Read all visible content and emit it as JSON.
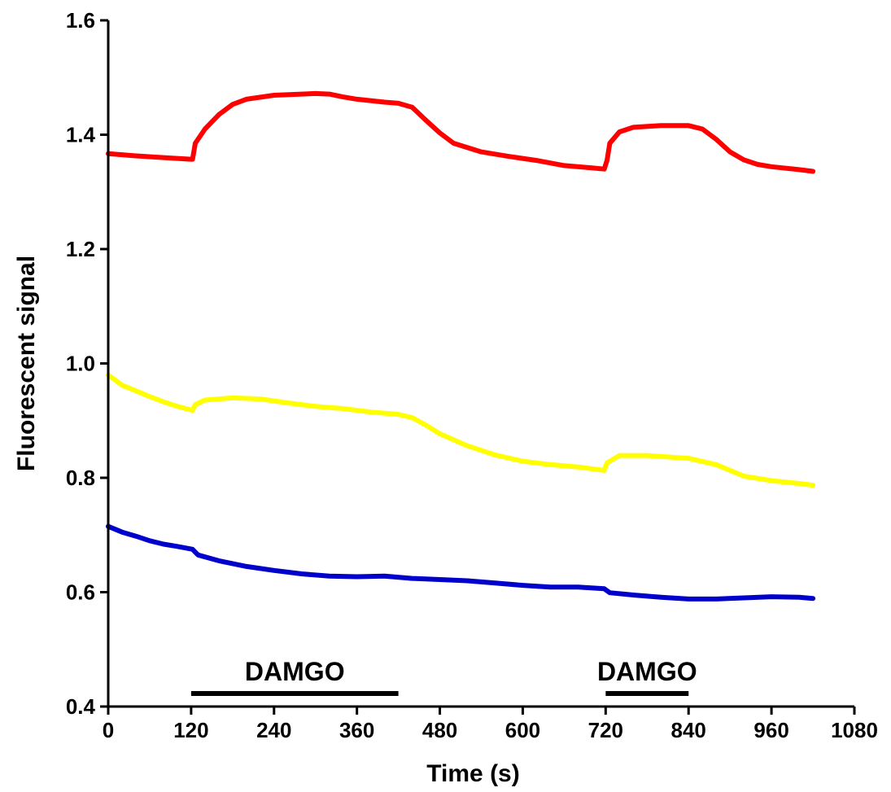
{
  "chart_data": {
    "type": "line",
    "xlabel": "Time (s)",
    "ylabel": "Fluorescent signal",
    "xlim": [
      0,
      1080
    ],
    "ylim": [
      0.4,
      1.6
    ],
    "xticks": [
      0,
      120,
      240,
      360,
      480,
      600,
      720,
      840,
      960,
      1080
    ],
    "xtick_labels": [
      "0",
      "120",
      "240",
      "360",
      "480",
      "600",
      "720",
      "840",
      "960",
      "1080"
    ],
    "yticks": [
      0.4,
      0.6,
      0.8,
      1.0,
      1.2,
      1.4,
      1.6
    ],
    "ytick_labels": [
      "0.4",
      "0.6",
      "0.8",
      "1.0",
      "1.2",
      "1.4",
      "1.6"
    ],
    "grid": false,
    "series": [
      {
        "color": "#ff0000",
        "points": [
          [
            0,
            1.367
          ],
          [
            40,
            1.363
          ],
          [
            80,
            1.36
          ],
          [
            122,
            1.357
          ],
          [
            126,
            1.385
          ],
          [
            140,
            1.41
          ],
          [
            160,
            1.435
          ],
          [
            180,
            1.453
          ],
          [
            200,
            1.462
          ],
          [
            240,
            1.469
          ],
          [
            280,
            1.471
          ],
          [
            300,
            1.472
          ],
          [
            320,
            1.471
          ],
          [
            340,
            1.466
          ],
          [
            360,
            1.462
          ],
          [
            400,
            1.457
          ],
          [
            420,
            1.455
          ],
          [
            440,
            1.448
          ],
          [
            460,
            1.425
          ],
          [
            480,
            1.403
          ],
          [
            500,
            1.385
          ],
          [
            540,
            1.37
          ],
          [
            580,
            1.362
          ],
          [
            620,
            1.355
          ],
          [
            660,
            1.346
          ],
          [
            700,
            1.342
          ],
          [
            718,
            1.34
          ],
          [
            722,
            1.355
          ],
          [
            726,
            1.385
          ],
          [
            740,
            1.405
          ],
          [
            760,
            1.413
          ],
          [
            800,
            1.416
          ],
          [
            840,
            1.416
          ],
          [
            860,
            1.41
          ],
          [
            880,
            1.392
          ],
          [
            900,
            1.37
          ],
          [
            920,
            1.356
          ],
          [
            940,
            1.348
          ],
          [
            960,
            1.344
          ],
          [
            1000,
            1.339
          ],
          [
            1020,
            1.336
          ]
        ]
      },
      {
        "color": "#ffff00",
        "points": [
          [
            0,
            0.98
          ],
          [
            20,
            0.962
          ],
          [
            40,
            0.952
          ],
          [
            60,
            0.942
          ],
          [
            80,
            0.933
          ],
          [
            100,
            0.925
          ],
          [
            122,
            0.918
          ],
          [
            126,
            0.928
          ],
          [
            140,
            0.936
          ],
          [
            180,
            0.94
          ],
          [
            220,
            0.938
          ],
          [
            260,
            0.931
          ],
          [
            300,
            0.925
          ],
          [
            340,
            0.921
          ],
          [
            380,
            0.915
          ],
          [
            420,
            0.911
          ],
          [
            440,
            0.905
          ],
          [
            460,
            0.892
          ],
          [
            480,
            0.877
          ],
          [
            520,
            0.856
          ],
          [
            560,
            0.84
          ],
          [
            600,
            0.829
          ],
          [
            640,
            0.823
          ],
          [
            680,
            0.819
          ],
          [
            718,
            0.813
          ],
          [
            722,
            0.826
          ],
          [
            740,
            0.839
          ],
          [
            780,
            0.839
          ],
          [
            840,
            0.834
          ],
          [
            880,
            0.823
          ],
          [
            920,
            0.803
          ],
          [
            960,
            0.795
          ],
          [
            1000,
            0.79
          ],
          [
            1020,
            0.787
          ]
        ]
      },
      {
        "color": "#0000cc",
        "points": [
          [
            0,
            0.715
          ],
          [
            20,
            0.705
          ],
          [
            40,
            0.698
          ],
          [
            60,
            0.69
          ],
          [
            80,
            0.684
          ],
          [
            100,
            0.68
          ],
          [
            122,
            0.675
          ],
          [
            130,
            0.665
          ],
          [
            160,
            0.655
          ],
          [
            200,
            0.645
          ],
          [
            240,
            0.638
          ],
          [
            280,
            0.632
          ],
          [
            320,
            0.628
          ],
          [
            360,
            0.627
          ],
          [
            400,
            0.628
          ],
          [
            440,
            0.624
          ],
          [
            480,
            0.622
          ],
          [
            520,
            0.62
          ],
          [
            560,
            0.616
          ],
          [
            600,
            0.612
          ],
          [
            640,
            0.609
          ],
          [
            680,
            0.609
          ],
          [
            718,
            0.606
          ],
          [
            726,
            0.599
          ],
          [
            760,
            0.595
          ],
          [
            800,
            0.591
          ],
          [
            840,
            0.588
          ],
          [
            880,
            0.588
          ],
          [
            920,
            0.59
          ],
          [
            960,
            0.592
          ],
          [
            1000,
            0.591
          ],
          [
            1020,
            0.589
          ]
        ]
      }
    ],
    "annotations": [
      {
        "label": "DAMGO",
        "x_start": 120,
        "x_end": 420
      },
      {
        "label": "DAMGO",
        "x_start": 720,
        "x_end": 840
      }
    ]
  }
}
